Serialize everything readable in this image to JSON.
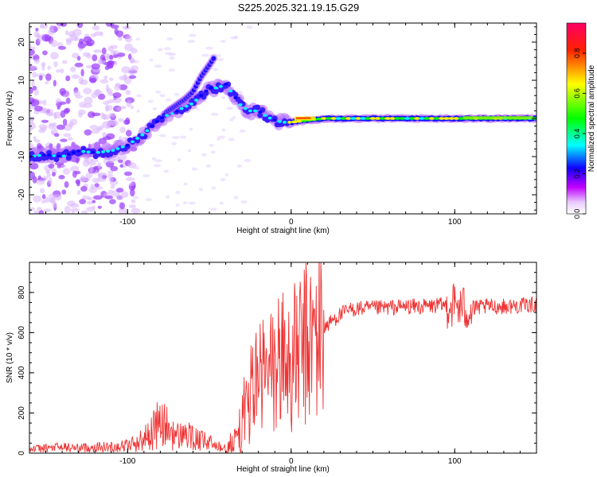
{
  "title": "S225.2025.321.19.15.G29",
  "chart_data": [
    {
      "type": "heatmap",
      "title": "S225.2025.321.19.15.G29",
      "xlabel": "Height of straight line (km)",
      "ylabel": "Frequency (Hz)",
      "xlim": [
        -160,
        150
      ],
      "ylim": [
        -25,
        25
      ],
      "x_ticks": [
        -100,
        0,
        100
      ],
      "y_ticks": [
        -20,
        -10,
        0,
        10,
        20
      ],
      "colorbar": {
        "label": "Normalized spectral amplitude",
        "range": [
          0.0,
          0.95
        ],
        "ticks": [
          "0.0",
          "0.2",
          "0.4",
          "0.6",
          "0.8"
        ],
        "colors": [
          "#ffffff",
          "#c000ff",
          "#0000ff",
          "#00ffff",
          "#00ff00",
          "#ffff00",
          "#ff0000",
          "#ff0066"
        ]
      },
      "ridge": {
        "x": [
          -160,
          -150,
          -140,
          -130,
          -120,
          -110,
          -100,
          -90,
          -80,
          -70,
          -60,
          -50,
          -45,
          -40,
          -35,
          -30,
          -25,
          -20,
          -15,
          -10,
          -5,
          0,
          10,
          20,
          40,
          60,
          80,
          100,
          120,
          150
        ],
        "y": [
          -10,
          -9.5,
          -10,
          -8.5,
          -9,
          -8.5,
          -7,
          -4,
          0,
          2,
          4,
          8,
          8,
          9,
          6,
          3,
          2,
          2,
          0.5,
          -0.5,
          -1,
          -1,
          -0.5,
          0,
          0,
          0,
          0,
          0,
          0,
          0
        ]
      },
      "secondary_ridge": {
        "x": [
          -75,
          -65,
          -60,
          -55,
          -50,
          -47
        ],
        "y": [
          2,
          5,
          7,
          11,
          14,
          16
        ]
      }
    },
    {
      "type": "line",
      "xlabel": "Height of straight line (km)",
      "ylabel": "SNR (10 * v/v)",
      "xlim": [
        -160,
        150
      ],
      "ylim": [
        0,
        950
      ],
      "x_ticks": [
        -100,
        0,
        100
      ],
      "y_ticks": [
        0,
        200,
        400,
        600,
        800
      ],
      "color": "#ee3333",
      "series": [
        {
          "name": "SNR",
          "x": [
            -160,
            -150,
            -140,
            -130,
            -120,
            -110,
            -100,
            -95,
            -90,
            -85,
            -80,
            -75,
            -70,
            -65,
            -60,
            -55,
            -50,
            -45,
            -40,
            -35,
            -30,
            -25,
            -20,
            -15,
            -10,
            -5,
            0,
            5,
            10,
            15,
            20,
            25,
            30,
            35,
            40,
            50,
            60,
            70,
            80,
            90,
            100,
            105,
            110,
            120,
            130,
            140,
            150
          ],
          "y": [
            20,
            25,
            30,
            25,
            30,
            30,
            40,
            50,
            70,
            110,
            150,
            120,
            80,
            100,
            70,
            60,
            50,
            40,
            35,
            50,
            150,
            300,
            380,
            380,
            420,
            480,
            440,
            500,
            540,
            580,
            620,
            660,
            690,
            710,
            720,
            720,
            725,
            730,
            730,
            735,
            740,
            720,
            720,
            730,
            730,
            735,
            740
          ]
        }
      ]
    }
  ]
}
